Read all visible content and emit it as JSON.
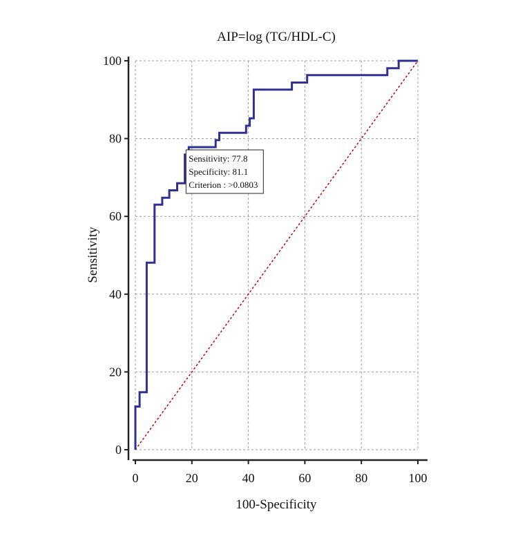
{
  "chart_data": {
    "type": "line",
    "title": "AIP=log (TG/HDL-C)",
    "xlabel": "100-Specificity",
    "ylabel": "Sensitivity",
    "xlim": [
      0,
      100
    ],
    "ylim": [
      0,
      100
    ],
    "x_ticks": [
      0,
      20,
      40,
      60,
      80,
      100
    ],
    "y_ticks": [
      0,
      20,
      40,
      60,
      80,
      100
    ],
    "grid": true,
    "colors": {
      "roc": "#2e3192",
      "reference": "#c00000",
      "grid": "#9a9a9a",
      "axis": "#222222"
    },
    "series": [
      {
        "name": "ROC curve",
        "step": true,
        "points": [
          [
            0,
            0
          ],
          [
            0,
            11.1
          ],
          [
            1.5,
            11.1
          ],
          [
            1.5,
            14.8
          ],
          [
            4,
            14.8
          ],
          [
            4,
            48.1
          ],
          [
            6.8,
            48.1
          ],
          [
            6.8,
            63
          ],
          [
            9.5,
            63
          ],
          [
            9.5,
            64.8
          ],
          [
            12,
            64.8
          ],
          [
            12,
            66.7
          ],
          [
            14.8,
            66.7
          ],
          [
            14.8,
            68.5
          ],
          [
            17.5,
            68.5
          ],
          [
            17.5,
            75.9
          ],
          [
            18.9,
            75.9
          ],
          [
            18.9,
            77.8
          ],
          [
            28.4,
            77.8
          ],
          [
            28.4,
            79.6
          ],
          [
            29.7,
            79.6
          ],
          [
            29.7,
            81.5
          ],
          [
            39.2,
            81.5
          ],
          [
            39.2,
            83.3
          ],
          [
            40.5,
            83.3
          ],
          [
            40.5,
            85.2
          ],
          [
            41.9,
            85.2
          ],
          [
            41.9,
            92.6
          ],
          [
            55.4,
            92.6
          ],
          [
            55.4,
            94.4
          ],
          [
            60.8,
            94.4
          ],
          [
            60.8,
            96.3
          ],
          [
            89.2,
            96.3
          ],
          [
            89.2,
            98.1
          ],
          [
            93.2,
            98.1
          ],
          [
            93.2,
            100
          ],
          [
            100,
            100
          ]
        ]
      },
      {
        "name": "Reference line",
        "style": "dotted",
        "points": [
          [
            0,
            0
          ],
          [
            100,
            100
          ]
        ]
      }
    ],
    "annotation": {
      "anchor": [
        18.9,
        77.8
      ],
      "lines": [
        "Sensitivity: 77.8",
        "Specificity: 81.1",
        "Criterion : >0.0803"
      ]
    }
  }
}
